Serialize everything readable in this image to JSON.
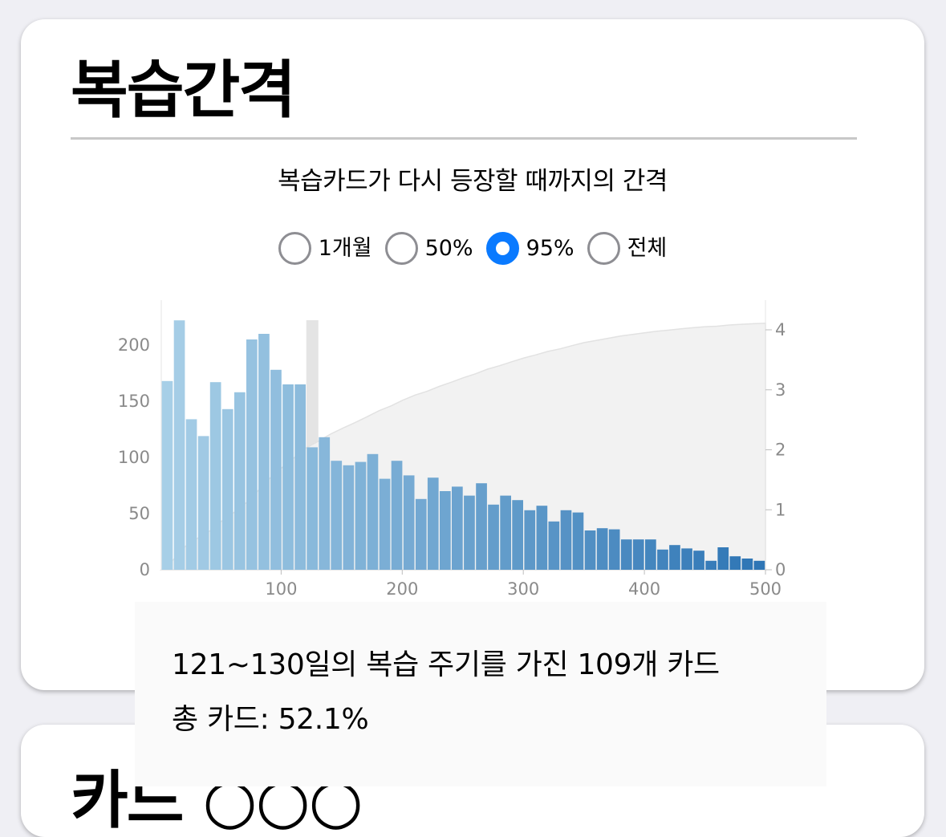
{
  "section1": {
    "title": "복습간격",
    "subtitle": "복습카드가 다시 등장할 때까지의 간격",
    "radios": [
      {
        "label": "1개월",
        "checked": false
      },
      {
        "label": "50%",
        "checked": false
      },
      {
        "label": "95%",
        "checked": true
      },
      {
        "label": "전체",
        "checked": false
      }
    ],
    "tooltip": {
      "line1": "121~130일의 복습 주기를 가진 109개 카드",
      "line2": "총 카드: 52.1%"
    }
  },
  "section2": {
    "title": "카드 ○○○"
  },
  "colors": {
    "card_bg": "#ffffff",
    "page_bg": "#efeff4",
    "accent": "#0a7aff",
    "bar_light": "#a7cfe7",
    "bar_dark": "#2e75b5",
    "highlight": "#e4e4e4",
    "cumulative_fill": "#f2f2f2"
  },
  "chart_data": {
    "type": "bar",
    "bin_width_days": 10,
    "x": [
      1,
      11,
      21,
      31,
      41,
      51,
      61,
      71,
      81,
      91,
      101,
      111,
      121,
      131,
      141,
      151,
      161,
      171,
      181,
      191,
      201,
      211,
      221,
      231,
      241,
      251,
      261,
      271,
      281,
      291,
      301,
      311,
      321,
      331,
      341,
      351,
      361,
      371,
      381,
      391,
      401,
      411,
      421,
      431,
      441,
      451,
      461,
      471,
      481,
      491
    ],
    "values": [
      168,
      222,
      134,
      119,
      167,
      143,
      158,
      205,
      210,
      178,
      165,
      165,
      109,
      118,
      97,
      93,
      96,
      103,
      81,
      97,
      84,
      63,
      82,
      70,
      74,
      66,
      77,
      58,
      66,
      62,
      53,
      57,
      43,
      53,
      51,
      35,
      37,
      36,
      27,
      27,
      27,
      18,
      22,
      19,
      17,
      8,
      20,
      12,
      10,
      8
    ],
    "highlight_bin": 12,
    "series": [
      {
        "name": "",
        "axis": "left",
        "type": "bar"
      },
      {
        "name": "",
        "axis": "right",
        "type": "area-cumulative",
        "values": [
          168,
          390,
          524,
          643,
          810,
          953,
          1111,
          1316,
          1526,
          1704,
          1869,
          2034,
          2143,
          2261,
          2358,
          2451,
          2547,
          2650,
          2731,
          2828,
          2912,
          2975,
          3057,
          3127,
          3201,
          3267,
          3344,
          3402,
          3468,
          3530,
          3583,
          3640,
          3683,
          3736,
          3787,
          3822,
          3859,
          3895,
          3922,
          3949,
          3976,
          3994,
          4016,
          4035,
          4052,
          4060,
          4080,
          4092,
          4102,
          4110
        ]
      }
    ],
    "xlim": [
      1,
      500
    ],
    "ylim_left": [
      0,
      230
    ],
    "ylim_right": [
      0,
      4110
    ],
    "x_ticks": [
      "100",
      "200",
      "300",
      "400",
      "500"
    ],
    "y_left_ticks": [
      "0",
      "50",
      "100",
      "150",
      "200"
    ],
    "y_right_ticks": [
      "0",
      "1,000",
      "2,000",
      "3,000",
      "4,000"
    ],
    "grid": false
  }
}
